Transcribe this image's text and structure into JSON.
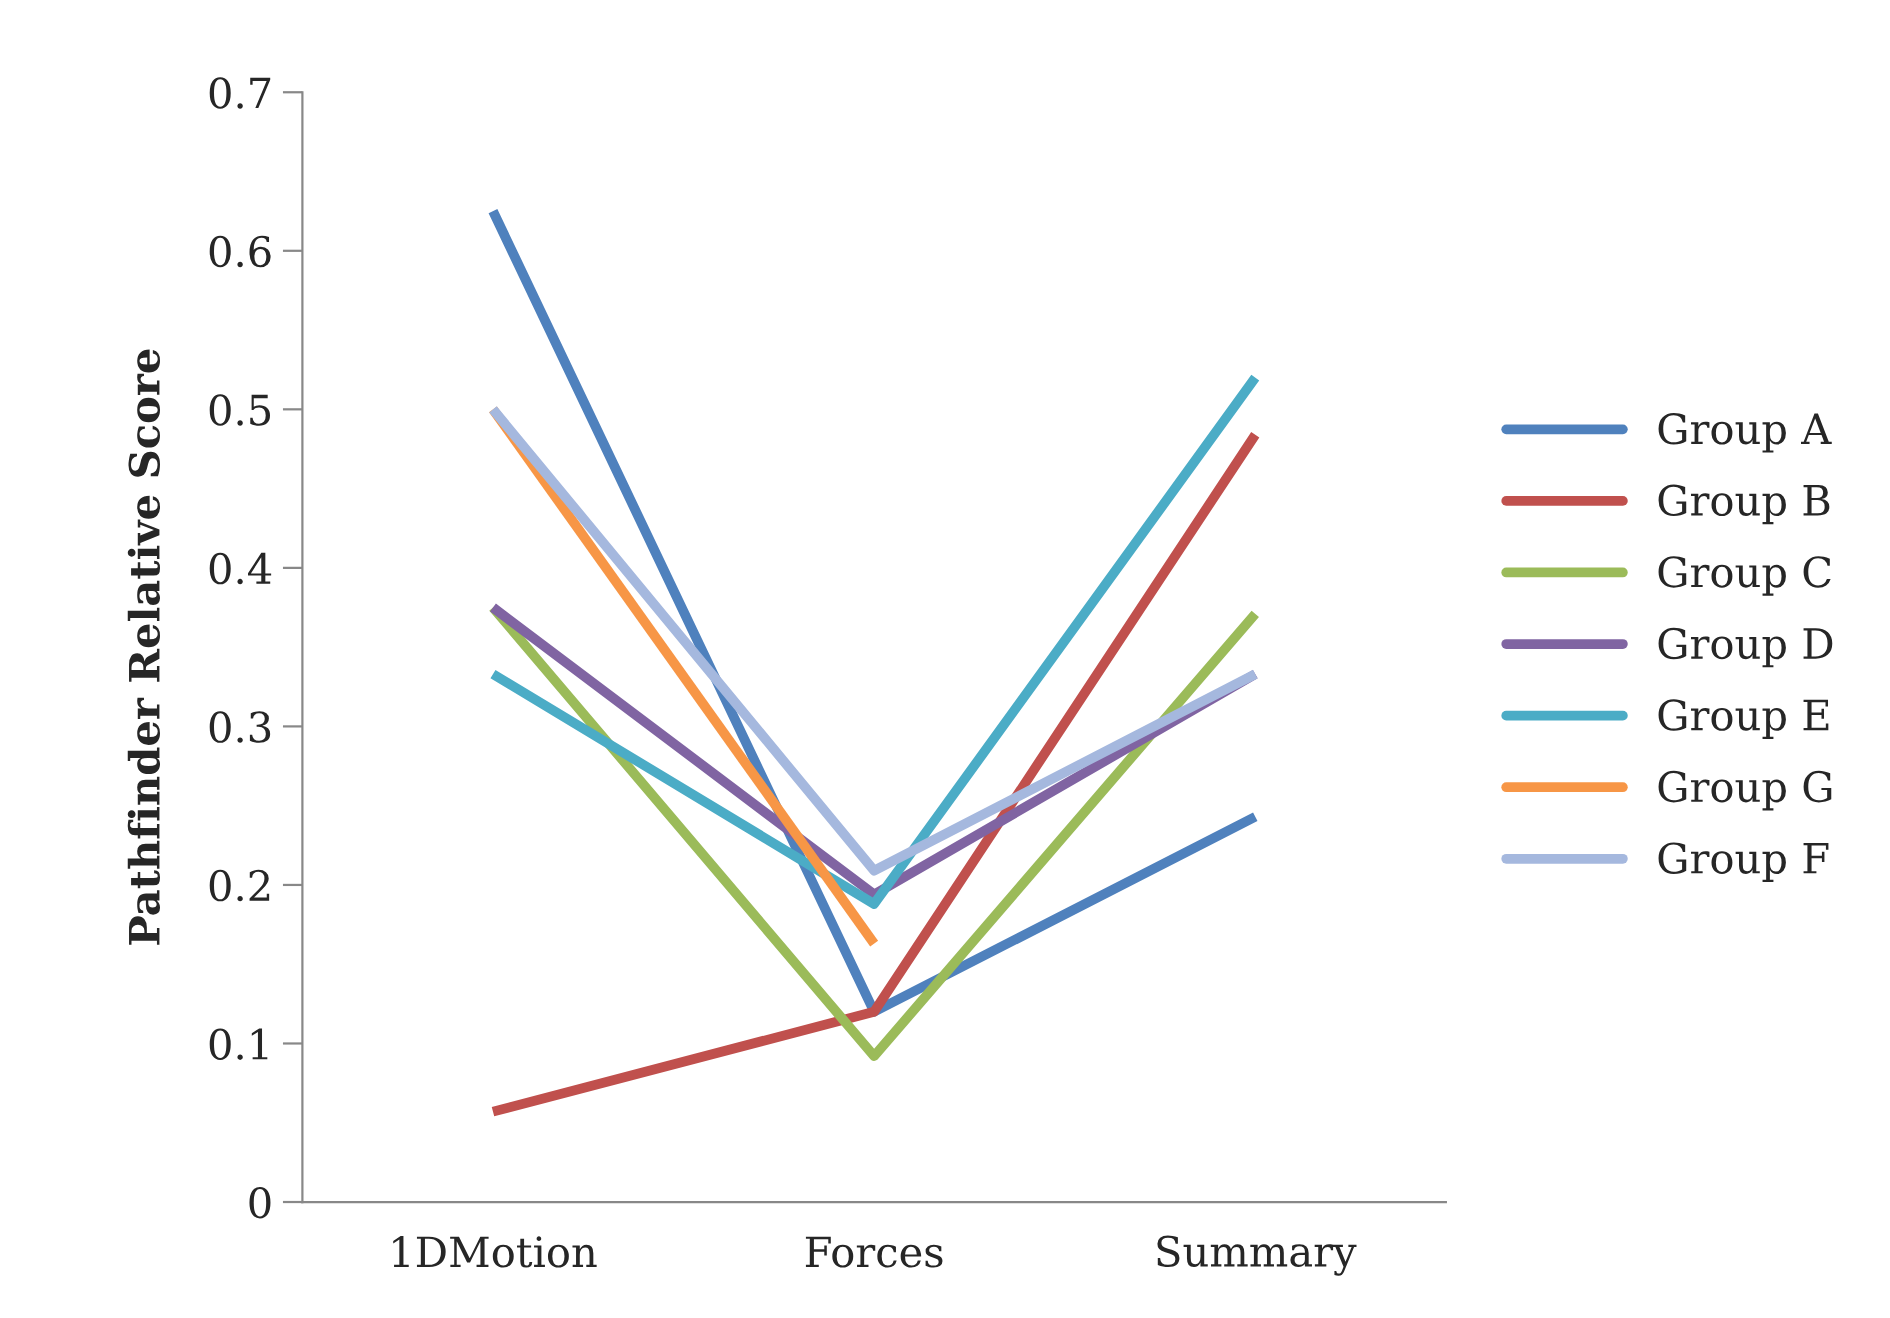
{
  "chart_data": {
    "type": "line",
    "ylabel": "Pathfinder Relative Score",
    "categories": [
      "1DMotion",
      "Forces",
      "Summary"
    ],
    "series": [
      {
        "name": "Group A",
        "color": "#4f81bd",
        "values": [
          0.625,
          0.12,
          0.243
        ]
      },
      {
        "name": "Group B",
        "color": "#c0504d",
        "values": [
          0.057,
          0.12,
          0.484
        ]
      },
      {
        "name": "Group C",
        "color": "#9bbb59",
        "values": [
          0.375,
          0.092,
          0.371
        ]
      },
      {
        "name": "Group D",
        "color": "#8064a2",
        "values": [
          0.375,
          0.194,
          0.333
        ]
      },
      {
        "name": "Group E",
        "color": "#4bacc6",
        "values": [
          0.333,
          0.188,
          0.52
        ]
      },
      {
        "name": "Group G",
        "color": "#f79646",
        "values": [
          0.5,
          0.163,
          null
        ]
      },
      {
        "name": "Group F",
        "color": "#a5b8de",
        "values": [
          0.5,
          0.209,
          0.333
        ]
      }
    ],
    "ylim": [
      0,
      0.7
    ],
    "yticks": [
      0,
      0.1,
      0.2,
      0.3,
      0.4,
      0.5,
      0.6,
      0.7
    ],
    "grid": false,
    "legend": "right",
    "marker": "none",
    "line_style": "solid"
  }
}
